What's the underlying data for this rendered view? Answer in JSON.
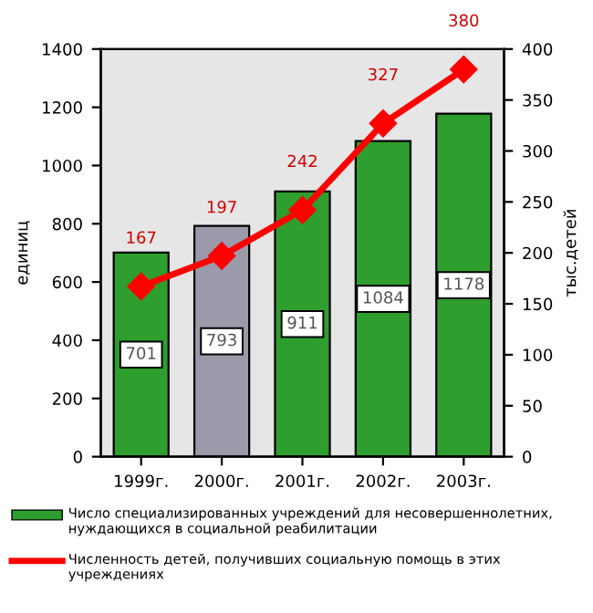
{
  "chart_data": {
    "type": "bar",
    "categories": [
      "1999г.",
      "2000г.",
      "2001г.",
      "2002г.",
      "2003г."
    ],
    "ylabel": "единиц",
    "y2label": "тыс.детей",
    "series": [
      {
        "name": "Число специализированных учреждений для несовершеннолетних, нуждающихся в социальной реабилитации",
        "type": "bar",
        "color": "#2e9e2e",
        "colors": [
          "#2e9e2e",
          "#9a9aaa",
          "#2e9e2e",
          "#2e9e2e",
          "#2e9e2e"
        ],
        "values": [
          701,
          793,
          911,
          1084,
          1178
        ]
      },
      {
        "name": "Численность детей, получивших социальную помощь в этих учреждениях",
        "type": "line",
        "axis": "y2",
        "color": "#ff0000",
        "marker": "diamond",
        "values": [
          167,
          197,
          242,
          327,
          380
        ]
      }
    ],
    "ylim": [
      0,
      1400
    ],
    "yticks": [
      0,
      200,
      400,
      600,
      800,
      1000,
      1200,
      1400
    ],
    "y2lim": [
      0,
      400
    ],
    "y2ticks": [
      0,
      50,
      100,
      150,
      200,
      250,
      300,
      350,
      400
    ],
    "data_labels": true,
    "legend": "bottom",
    "grid": false
  }
}
